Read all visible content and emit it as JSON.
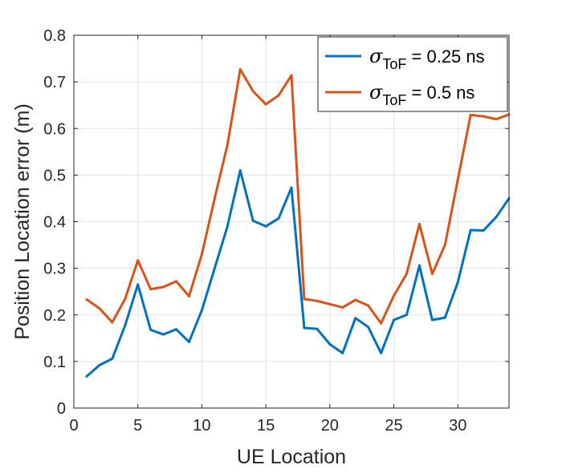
{
  "chart_data": {
    "type": "line",
    "title": "",
    "xlabel": "UE Location",
    "ylabel": "Position Location error (m)",
    "xlim": [
      0,
      34
    ],
    "ylim": [
      0,
      0.8
    ],
    "x_ticks": [
      0,
      5,
      10,
      15,
      20,
      25,
      30
    ],
    "y_ticks": [
      0,
      0.1,
      0.2,
      0.3,
      0.4,
      0.5,
      0.6,
      0.7,
      0.8
    ],
    "x_tick_labels": [
      "0",
      "5",
      "10",
      "15",
      "20",
      "25",
      "30"
    ],
    "y_tick_labels": [
      "0",
      "0.1",
      "0.2",
      "0.3",
      "0.4",
      "0.5",
      "0.6",
      "0.7",
      "0.8"
    ],
    "grid": true,
    "legend_position": "top-right",
    "x": [
      1,
      2,
      3,
      4,
      5,
      6,
      7,
      8,
      9,
      10,
      11,
      12,
      13,
      14,
      15,
      16,
      17,
      18,
      19,
      20,
      21,
      22,
      23,
      24,
      25,
      26,
      27,
      28,
      29,
      30,
      31,
      32,
      33,
      34
    ],
    "series": [
      {
        "legend_symbol": "σ",
        "legend_subscript": "ToF",
        "legend_suffix": " = 0.25 ns",
        "color": "#0072BD",
        "values": [
          0.068,
          0.092,
          0.106,
          0.177,
          0.265,
          0.168,
          0.158,
          0.169,
          0.142,
          0.21,
          0.3,
          0.39,
          0.51,
          0.402,
          0.39,
          0.407,
          0.473,
          0.172,
          0.17,
          0.137,
          0.118,
          0.193,
          0.174,
          0.118,
          0.189,
          0.2,
          0.306,
          0.189,
          0.194,
          0.27,
          0.382,
          0.381,
          0.41,
          0.45
        ]
      },
      {
        "legend_symbol": "σ",
        "legend_subscript": "ToF",
        "legend_suffix": " = 0.5 ns",
        "color": "#D95319",
        "values": [
          0.233,
          0.214,
          0.184,
          0.234,
          0.317,
          0.255,
          0.26,
          0.272,
          0.24,
          0.33,
          0.45,
          0.565,
          0.727,
          0.68,
          0.652,
          0.671,
          0.714,
          0.234,
          0.23,
          0.223,
          0.216,
          0.232,
          0.22,
          0.182,
          0.241,
          0.288,
          0.395,
          0.288,
          0.35,
          0.49,
          0.629,
          0.626,
          0.62,
          0.63
        ]
      }
    ]
  }
}
